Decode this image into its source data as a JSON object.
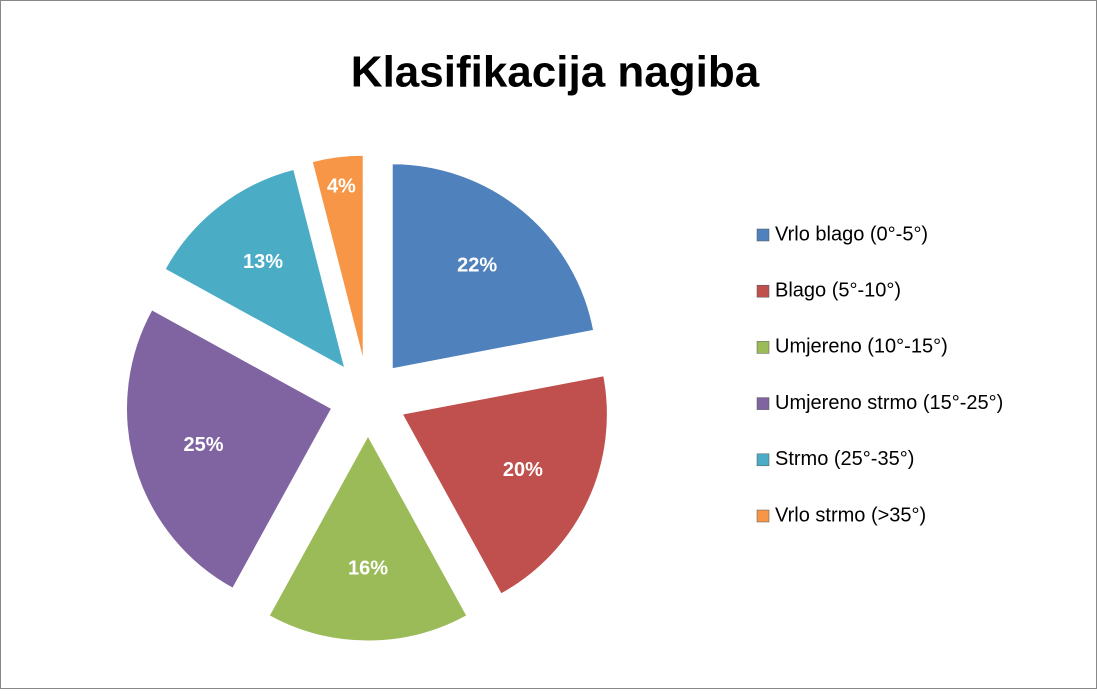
{
  "chart_data": {
    "type": "pie",
    "title": "Klasifikacija nagiba",
    "categories": [
      "Vrlo blago (0°-5°)",
      "Blago (5°-10°)",
      "Umjereno (10°-15°)",
      "Umjereno strmo (15°-25°)",
      "Strmo (25°-35°)",
      "Vrlo strmo (>35°)"
    ],
    "values": [
      22,
      20,
      16,
      25,
      13,
      4
    ],
    "value_labels": [
      "22%",
      "20%",
      "16%",
      "25%",
      "13%",
      "4%"
    ],
    "colors": [
      "#4f81bd",
      "#c0504d",
      "#9bbb59",
      "#8064a2",
      "#4bacc6",
      "#f79646"
    ],
    "legend": "right"
  }
}
